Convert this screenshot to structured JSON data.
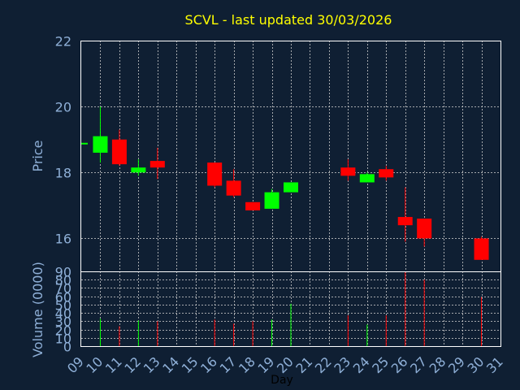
{
  "colors": {
    "background": "#0f1f33",
    "frame": "#ffffff",
    "grid": "#cccccc",
    "title": "#ffff00",
    "axis_text": "#8fb0d8",
    "up": "#00ff00",
    "down": "#ff0000"
  },
  "chart_data": [
    {
      "type": "candlestick",
      "title": "SCVL - last updated 30/03/2026",
      "ylabel": "Price",
      "xlim": [
        9,
        31
      ],
      "ylim": [
        15,
        22
      ],
      "y_ticks": [
        "16",
        "18",
        "20",
        "22"
      ],
      "grid": true,
      "candles": [
        {
          "day": 9,
          "open": 18.9,
          "high": 18.9,
          "low": 18.9,
          "close": 18.9
        },
        {
          "day": 10,
          "open": 18.6,
          "high": 20.0,
          "low": 18.3,
          "close": 19.1
        },
        {
          "day": 11,
          "open": 19.0,
          "high": 19.3,
          "low": 18.2,
          "close": 18.25
        },
        {
          "day": 12,
          "open": 18.0,
          "high": 18.4,
          "low": 17.9,
          "close": 18.15
        },
        {
          "day": 13,
          "open": 18.35,
          "high": 18.75,
          "low": 17.8,
          "close": 18.15
        },
        {
          "day": 16,
          "open": 18.3,
          "high": 18.3,
          "low": 17.55,
          "close": 17.6
        },
        {
          "day": 17,
          "open": 17.75,
          "high": 18.1,
          "low": 17.25,
          "close": 17.3
        },
        {
          "day": 18,
          "open": 17.1,
          "high": 17.1,
          "low": 16.85,
          "close": 16.85
        },
        {
          "day": 19,
          "open": 16.9,
          "high": 17.5,
          "low": 16.9,
          "close": 17.4
        },
        {
          "day": 20,
          "open": 17.4,
          "high": 17.7,
          "low": 17.4,
          "close": 17.7
        },
        {
          "day": 23,
          "open": 18.15,
          "high": 18.4,
          "low": 17.75,
          "close": 17.9
        },
        {
          "day": 24,
          "open": 17.7,
          "high": 18.0,
          "low": 17.7,
          "close": 17.95
        },
        {
          "day": 25,
          "open": 18.1,
          "high": 18.2,
          "low": 17.75,
          "close": 17.85
        },
        {
          "day": 26,
          "open": 16.65,
          "high": 17.55,
          "low": 15.9,
          "close": 16.4
        },
        {
          "day": 27,
          "open": 16.6,
          "high": 16.6,
          "low": 15.75,
          "close": 16.0
        },
        {
          "day": 30,
          "open": 16.0,
          "high": 16.05,
          "low": 15.35,
          "close": 15.35
        }
      ]
    },
    {
      "type": "bar",
      "ylabel": "Volume (0000)",
      "xlabel": "Day",
      "xlim": [
        9,
        31
      ],
      "ylim": [
        0,
        90
      ],
      "y_ticks": [
        "0",
        "10",
        "20",
        "30",
        "40",
        "50",
        "60",
        "70",
        "80",
        "90"
      ],
      "x_ticks": [
        "09",
        "10",
        "11",
        "12",
        "13",
        "14",
        "15",
        "16",
        "17",
        "18",
        "19",
        "20",
        "21",
        "22",
        "23",
        "24",
        "25",
        "26",
        "27",
        "28",
        "29",
        "30",
        "31"
      ],
      "grid": true,
      "bars": [
        {
          "day": 10,
          "value": 33,
          "direction": "up"
        },
        {
          "day": 11,
          "value": 24,
          "direction": "down"
        },
        {
          "day": 12,
          "value": 31,
          "direction": "up"
        },
        {
          "day": 13,
          "value": 30,
          "direction": "down"
        },
        {
          "day": 16,
          "value": 32,
          "direction": "down"
        },
        {
          "day": 17,
          "value": 27,
          "direction": "down"
        },
        {
          "day": 18,
          "value": 30,
          "direction": "down"
        },
        {
          "day": 19,
          "value": 32,
          "direction": "up"
        },
        {
          "day": 20,
          "value": 51,
          "direction": "up"
        },
        {
          "day": 23,
          "value": 37,
          "direction": "down"
        },
        {
          "day": 24,
          "value": 26,
          "direction": "up"
        },
        {
          "day": 25,
          "value": 37,
          "direction": "down"
        },
        {
          "day": 26,
          "value": 90,
          "direction": "down"
        },
        {
          "day": 27,
          "value": 80,
          "direction": "down"
        },
        {
          "day": 30,
          "value": 59,
          "direction": "down"
        }
      ]
    }
  ]
}
